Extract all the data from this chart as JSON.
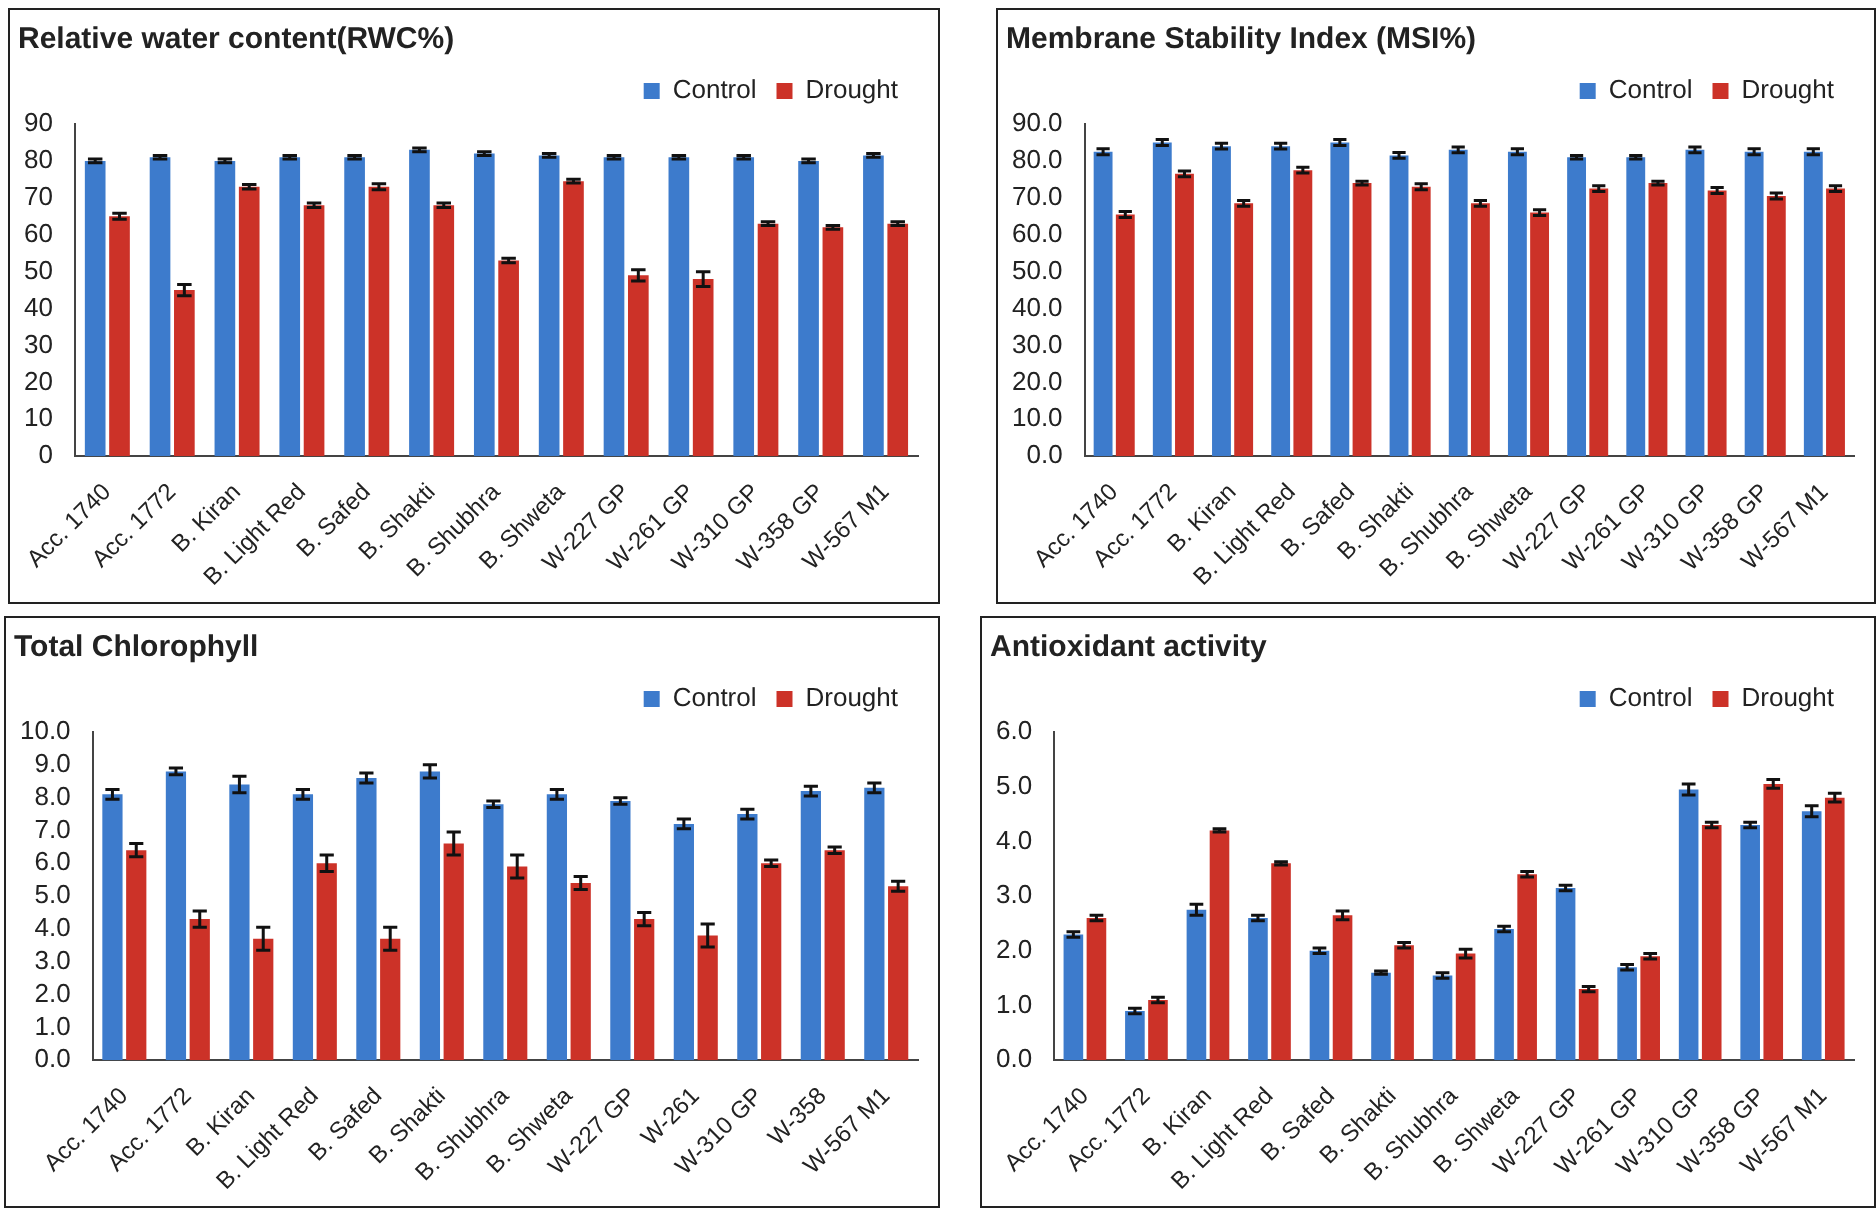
{
  "chart_data": [
    {
      "type": "bar",
      "title": "Relative water content(RWC%)",
      "categories": [
        "Acc. 1740",
        "Acc. 1772",
        "B. Kiran",
        "B. Light Red",
        "B. Safed",
        "B. Shakti",
        "B. Shubhra",
        "B. Shweta",
        "W-227 GP",
        "W-261 GP",
        "W-310 GP",
        "W-358 GP",
        "W-567 M1"
      ],
      "series": [
        {
          "name": "Control",
          "color": "#3d7bcc",
          "values": [
            80,
            81,
            80,
            81,
            81,
            83,
            82,
            81.5,
            81,
            81,
            81,
            80,
            81.5
          ],
          "errors": [
            0.5,
            0.5,
            0.5,
            0.5,
            0.5,
            0.5,
            0.5,
            0.5,
            0.5,
            0.5,
            0.5,
            0.5,
            0.5
          ]
        },
        {
          "name": "Drought",
          "color": "#cc3228",
          "values": [
            65,
            45,
            73,
            68,
            73,
            68,
            53,
            74.5,
            49,
            48,
            63,
            62,
            63
          ],
          "errors": [
            0.8,
            1.5,
            0.6,
            0.6,
            0.8,
            0.6,
            0.6,
            0.5,
            1.5,
            2,
            0.5,
            0.5,
            0.5
          ]
        }
      ],
      "ylim": [
        0,
        90
      ],
      "yticks": [
        0,
        10,
        20,
        30,
        40,
        50,
        60,
        70,
        80,
        90
      ],
      "grid": false,
      "legend": "top right"
    },
    {
      "type": "bar",
      "title": "Membrane Stability Index (MSI%)",
      "categories": [
        "Acc. 1740",
        "Acc. 1772",
        "B. Kiran",
        "B. Light Red",
        "B. Safed",
        "B. Shakti",
        "B. Shubhra",
        "B. Shweta",
        "W-227 GP",
        "W-261 GP",
        "W-310 GP",
        "W-358 GP",
        "W-567 M1"
      ],
      "series": [
        {
          "name": "Control",
          "color": "#3d7bcc",
          "values": [
            82.5,
            85,
            84,
            84,
            85,
            81.5,
            83,
            82.5,
            81,
            81,
            83,
            82.5,
            82.5
          ],
          "errors": [
            0.8,
            0.8,
            0.8,
            0.8,
            0.8,
            0.8,
            0.8,
            0.8,
            0.5,
            0.5,
            0.8,
            0.8,
            0.8
          ]
        },
        {
          "name": "Drought",
          "color": "#cc3228",
          "values": [
            65.5,
            76.5,
            68.5,
            77.5,
            74,
            73,
            68.5,
            66,
            72.5,
            74,
            72,
            70.5,
            72.5
          ],
          "errors": [
            0.8,
            0.8,
            0.8,
            0.8,
            0.5,
            0.8,
            0.8,
            0.8,
            0.8,
            0.5,
            0.8,
            0.8,
            0.8
          ]
        }
      ],
      "ylim": [
        0,
        90
      ],
      "yticks": [
        {
          "value": 0,
          "label": "0.0"
        },
        {
          "value": 10,
          "label": "10.0"
        },
        {
          "value": 20,
          "label": "20.0"
        },
        {
          "value": 30,
          "label": "30.0"
        },
        {
          "value": 40,
          "label": "40.0"
        },
        {
          "value": 50,
          "label": "50.0"
        },
        {
          "value": 60,
          "label": "60.0"
        },
        {
          "value": 70,
          "label": "70.0"
        },
        {
          "value": 80,
          "label": "80.0"
        },
        {
          "value": 90,
          "label": "90.0"
        }
      ],
      "grid": false,
      "legend": "top right"
    },
    {
      "type": "bar",
      "title": "Total Chlorophyll",
      "categories": [
        "Acc. 1740",
        "Acc. 1772",
        "B. Kiran",
        "B. Light Red",
        "B. Safed",
        "B. Shakti",
        "B. Shubhra",
        "B. Shweta",
        "W-227 GP",
        "W-261",
        "W-310 GP",
        "W-358",
        "W-567 M1"
      ],
      "series": [
        {
          "name": "Control",
          "color": "#3d7bcc",
          "values": [
            8.1,
            8.8,
            8.4,
            8.1,
            8.6,
            8.8,
            7.8,
            8.1,
            7.9,
            7.2,
            7.5,
            8.2,
            8.3
          ],
          "errors": [
            0.15,
            0.1,
            0.25,
            0.15,
            0.15,
            0.2,
            0.1,
            0.15,
            0.1,
            0.15,
            0.15,
            0.15,
            0.15
          ]
        },
        {
          "name": "Drought",
          "color": "#cc3228",
          "values": [
            6.4,
            4.3,
            3.7,
            6.0,
            3.7,
            6.6,
            5.9,
            5.4,
            4.3,
            3.8,
            6.0,
            6.4,
            5.3
          ],
          "errors": [
            0.2,
            0.25,
            0.35,
            0.25,
            0.35,
            0.35,
            0.35,
            0.2,
            0.2,
            0.35,
            0.1,
            0.1,
            0.15
          ]
        }
      ],
      "ylim": [
        0,
        10
      ],
      "yticks": [
        {
          "value": 0,
          "label": "0.0"
        },
        {
          "value": 1,
          "label": "1.0"
        },
        {
          "value": 2,
          "label": "2.0"
        },
        {
          "value": 3,
          "label": "3.0"
        },
        {
          "value": 4,
          "label": "4.0"
        },
        {
          "value": 5,
          "label": "5.0"
        },
        {
          "value": 6,
          "label": "6.0"
        },
        {
          "value": 7,
          "label": "7.0"
        },
        {
          "value": 8,
          "label": "8.0"
        },
        {
          "value": 9,
          "label": "9.0"
        },
        {
          "value": 10,
          "label": "10.0"
        }
      ],
      "grid": false,
      "legend": "top right"
    },
    {
      "type": "bar",
      "title": "Antioxidant activity",
      "categories": [
        "Acc. 1740",
        "Acc. 1772",
        "B. Kiran",
        "B. Light Red",
        "B. Safed",
        "B. Shakti",
        "B. Shubhra",
        "B. Shweta",
        "W-227 GP",
        "W-261 GP",
        "W-310 GP",
        "W-358 GP",
        "W-567 M1"
      ],
      "series": [
        {
          "name": "Control",
          "color": "#3d7bcc",
          "values": [
            2.3,
            0.9,
            2.75,
            2.6,
            2.0,
            1.6,
            1.55,
            2.4,
            3.15,
            1.7,
            4.95,
            4.3,
            4.55
          ],
          "errors": [
            0.05,
            0.05,
            0.1,
            0.05,
            0.05,
            0.03,
            0.05,
            0.05,
            0.05,
            0.05,
            0.1,
            0.05,
            0.1
          ]
        },
        {
          "name": "Drought",
          "color": "#cc3228",
          "values": [
            2.6,
            1.1,
            4.2,
            3.6,
            2.65,
            2.1,
            1.95,
            3.4,
            1.3,
            1.9,
            4.3,
            5.05,
            4.8
          ],
          "errors": [
            0.05,
            0.05,
            0.03,
            0.03,
            0.08,
            0.05,
            0.08,
            0.05,
            0.05,
            0.05,
            0.05,
            0.08,
            0.08
          ]
        }
      ],
      "ylim": [
        0,
        6
      ],
      "yticks": [
        {
          "value": 0,
          "label": "0.0"
        },
        {
          "value": 1,
          "label": "1.0"
        },
        {
          "value": 2,
          "label": "2.0"
        },
        {
          "value": 3,
          "label": "3.0"
        },
        {
          "value": 4,
          "label": "4.0"
        },
        {
          "value": 5,
          "label": "5.0"
        },
        {
          "value": 6,
          "label": "6.0"
        }
      ],
      "grid": false,
      "legend": "top right"
    }
  ]
}
